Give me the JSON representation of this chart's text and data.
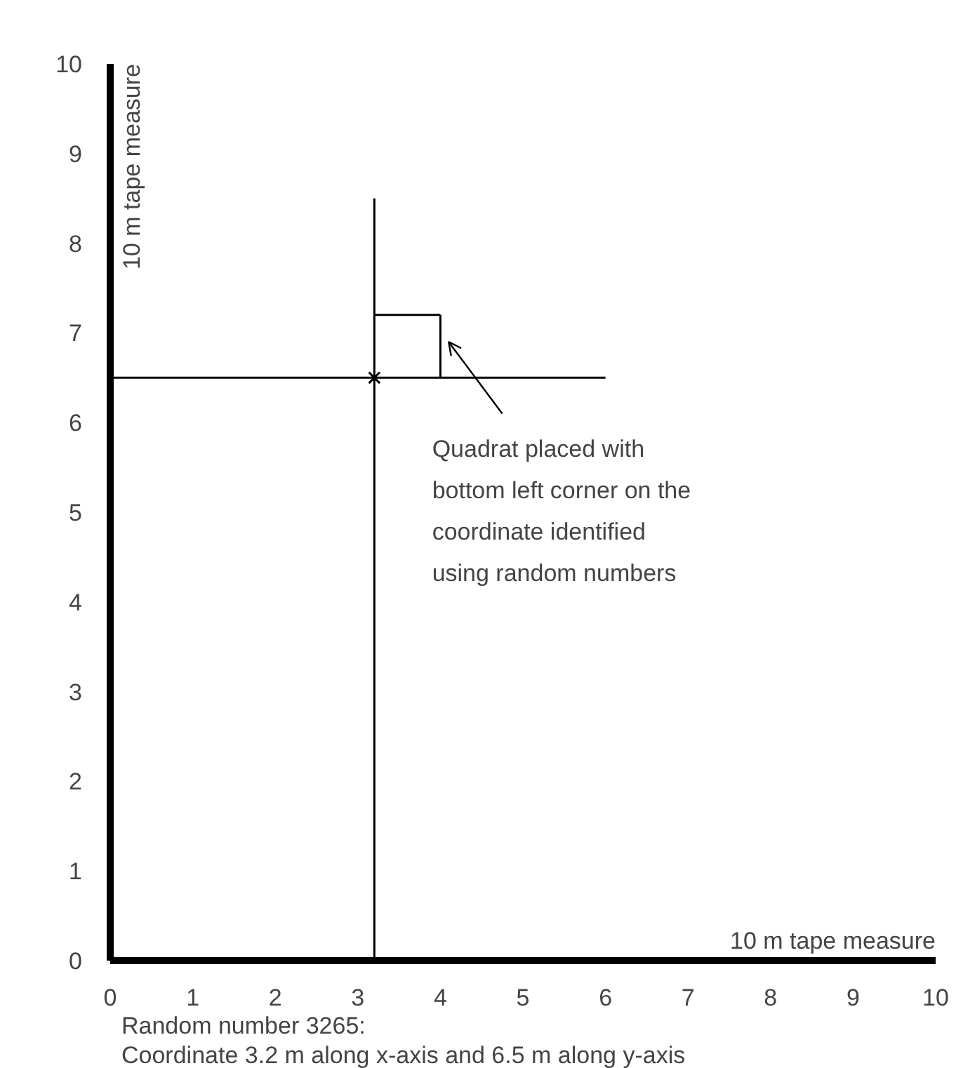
{
  "chart_data": {
    "type": "scatter",
    "xlabel": "10 m tape measure",
    "ylabel": "10 m tape measure",
    "xlim": [
      0,
      10
    ],
    "ylim": [
      0,
      10
    ],
    "xticks": [
      0,
      1,
      2,
      3,
      4,
      5,
      6,
      7,
      8,
      9,
      10
    ],
    "yticks": [
      0,
      1,
      2,
      3,
      4,
      5,
      6,
      7,
      8,
      9,
      10
    ],
    "grid": false,
    "series": [
      {
        "type": "line",
        "color": "#000000",
        "x": [
          3.2,
          3.2
        ],
        "values": [
          0,
          8.5
        ]
      },
      {
        "type": "line",
        "color": "#000000",
        "x": [
          0,
          6
        ],
        "values": [
          6.5,
          6.5
        ]
      },
      {
        "type": "line",
        "color": "#000000",
        "x": [
          3.2,
          4.0
        ],
        "values": [
          7.2,
          7.2
        ]
      },
      {
        "type": "line",
        "color": "#000000",
        "x": [
          4.0,
          4.0
        ],
        "values": [
          6.5,
          7.2
        ]
      },
      {
        "color": "#000000",
        "marker": "cross",
        "x": [
          3.2
        ],
        "values": [
          6.5
        ]
      }
    ],
    "annotations": [
      "Quadrat placed with\nbottom left corner on the\ncoordinate identified\nusing random numbers",
      "Random number 3265:\nCoordinate 3.2 m along x-axis and 6.5 m along y-axis"
    ]
  }
}
